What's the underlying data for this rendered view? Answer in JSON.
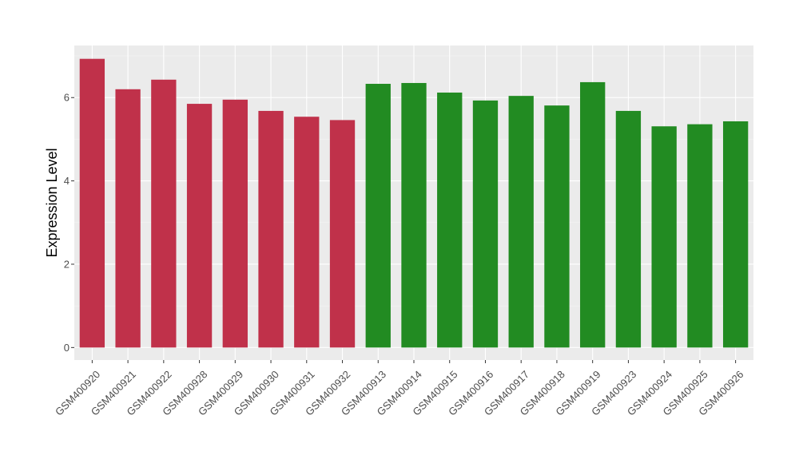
{
  "chart_data": {
    "type": "bar",
    "ylabel": "Expression Level",
    "xlabel": "",
    "ylim": [
      -0.3,
      7.25
    ],
    "yticks": [
      0,
      2,
      4,
      6
    ],
    "grid": true,
    "background": "#ebebeb",
    "categories": [
      "GSM400920",
      "GSM400921",
      "GSM400922",
      "GSM400928",
      "GSM400929",
      "GSM400930",
      "GSM400931",
      "GSM400932",
      "GSM400913",
      "GSM400914",
      "GSM400915",
      "GSM400916",
      "GSM400917",
      "GSM400918",
      "GSM400919",
      "GSM400923",
      "GSM400924",
      "GSM400925",
      "GSM400926"
    ],
    "values": [
      6.93,
      6.2,
      6.43,
      5.85,
      5.95,
      5.68,
      5.54,
      5.46,
      6.33,
      6.35,
      6.12,
      5.93,
      6.04,
      5.81,
      6.37,
      5.68,
      5.31,
      5.36,
      5.43
    ],
    "colors": [
      "#c0314a",
      "#c0314a",
      "#c0314a",
      "#c0314a",
      "#c0314a",
      "#c0314a",
      "#c0314a",
      "#c0314a",
      "#228b22",
      "#228b22",
      "#228b22",
      "#228b22",
      "#228b22",
      "#228b22",
      "#228b22",
      "#228b22",
      "#228b22",
      "#228b22",
      "#228b22"
    ]
  }
}
